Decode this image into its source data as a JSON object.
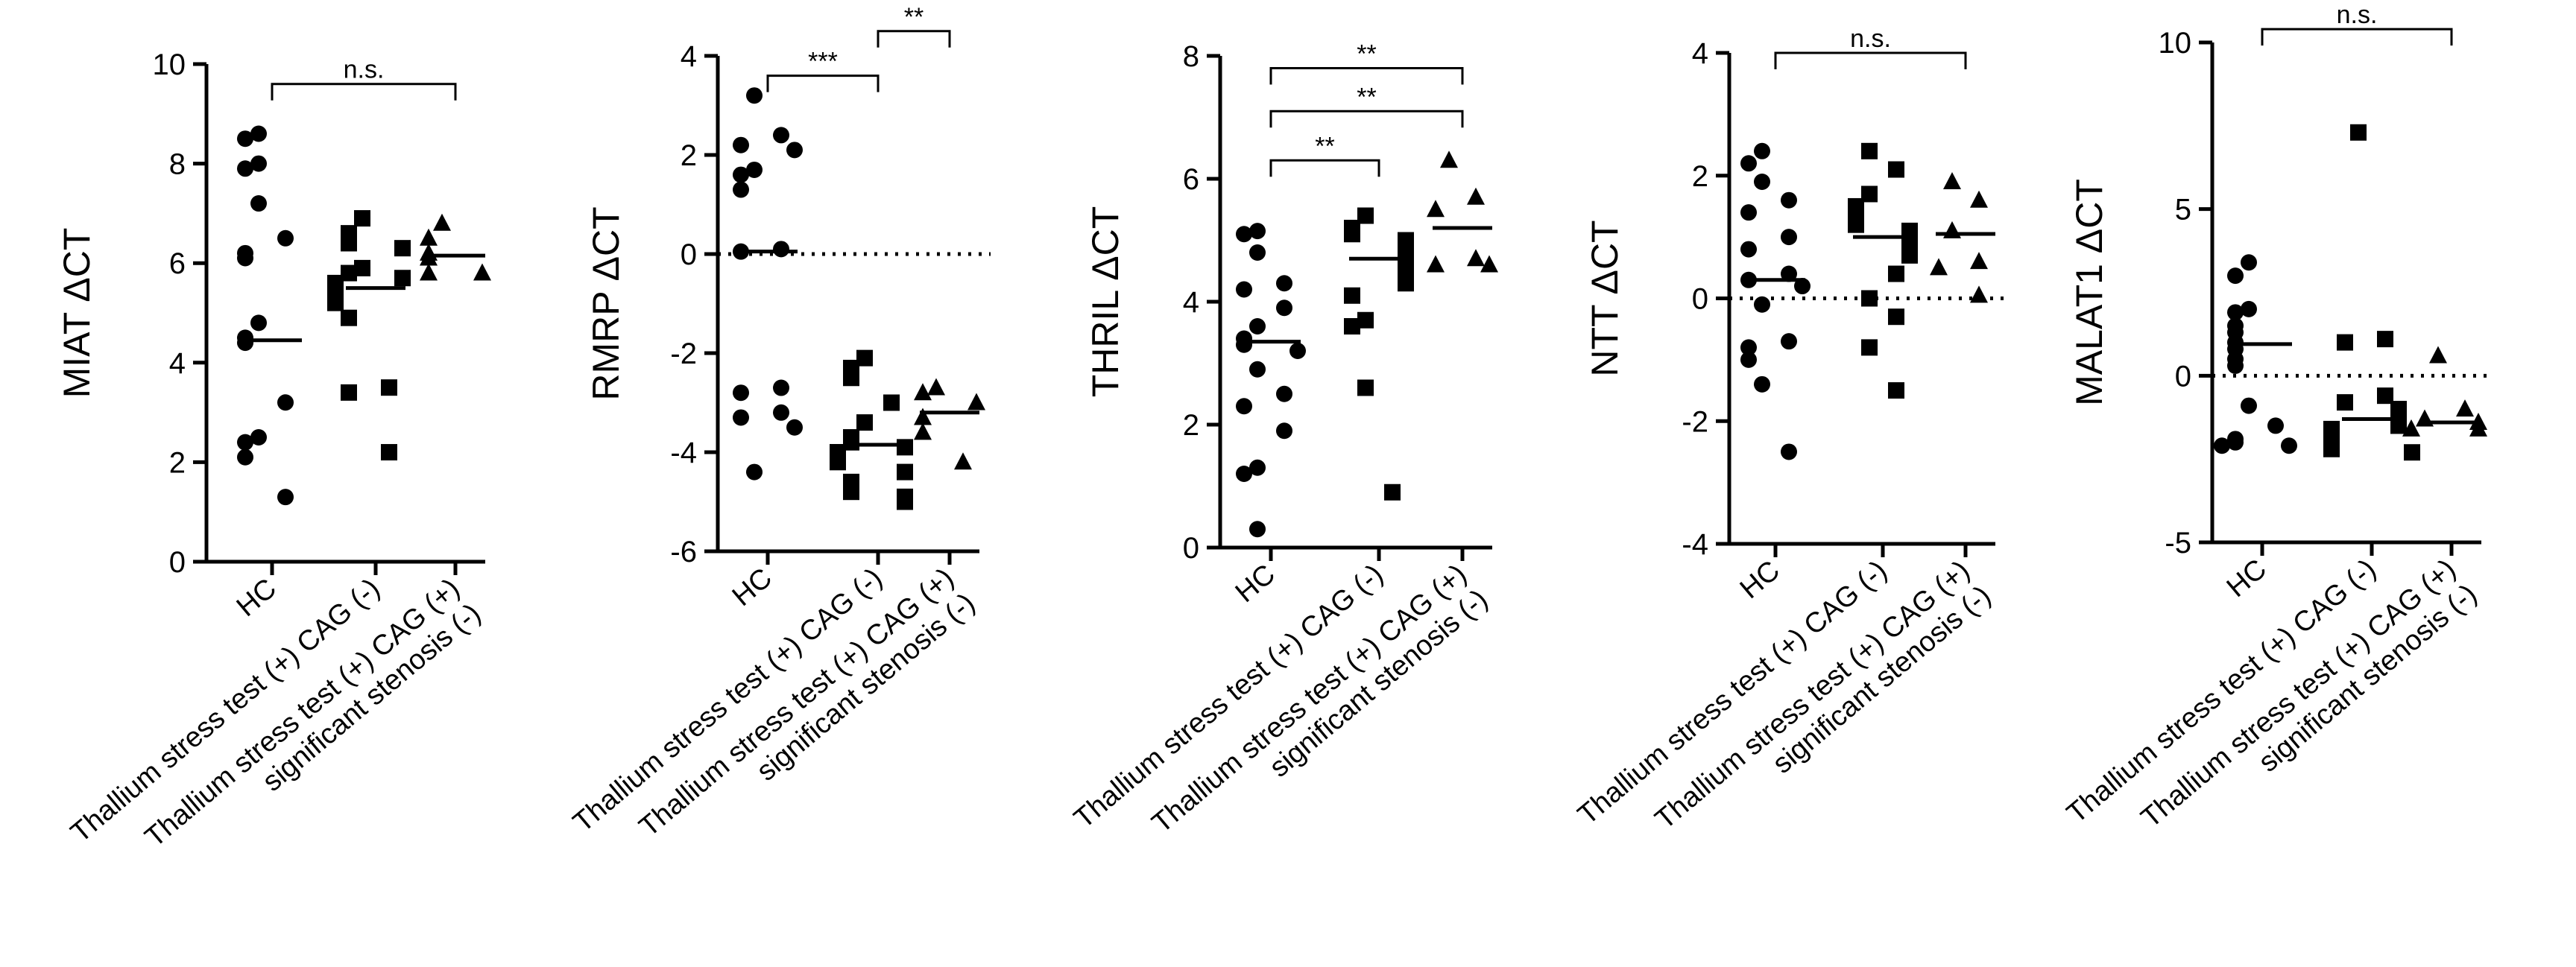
{
  "figure": {
    "description_free": true
  },
  "chart_data": [
    {
      "type": "scatter",
      "ylabel": "MIAT ΔCT",
      "ylim": [
        0,
        10
      ],
      "yticks": [
        0,
        2,
        4,
        6,
        8,
        10
      ],
      "ytick_labels": [
        "0",
        "2",
        "4",
        "6",
        "8",
        "10"
      ],
      "zero_line": false,
      "categories": [
        "HC",
        "Thallium stress test (+) CAG (-)",
        "Thallium stress test (+) CAG (+)\nsignificant stenosis (-)"
      ],
      "series": [
        {
          "name": "HC",
          "marker": "circle",
          "mean": 4.45,
          "values": [
            8.6,
            8.5,
            8.0,
            7.9,
            7.2,
            6.5,
            6.2,
            6.1,
            4.8,
            4.5,
            4.4,
            3.2,
            2.5,
            2.4,
            2.1,
            1.3
          ]
        },
        {
          "name": "Thallium stress test (+) CAG (-)",
          "marker": "square",
          "mean": 5.5,
          "values": [
            6.9,
            6.6,
            6.4,
            6.3,
            5.9,
            5.8,
            5.7,
            5.6,
            5.5,
            5.4,
            5.3,
            5.2,
            4.9,
            3.5,
            3.4,
            2.2
          ]
        },
        {
          "name": "Thallium stress test (+) CAG (+) significant stenosis (-)",
          "marker": "triangle",
          "mean": 6.15,
          "values": [
            6.8,
            6.5,
            6.2,
            6.1,
            5.8,
            5.8
          ]
        }
      ],
      "annotations": [
        {
          "from": 0,
          "to": 2,
          "label": "n.s.",
          "y": 9.6
        }
      ]
    },
    {
      "type": "scatter",
      "ylabel": "RMRP ΔCT",
      "ylim": [
        -6,
        4
      ],
      "yticks": [
        -6,
        -4,
        -2,
        0,
        2,
        4
      ],
      "ytick_labels": [
        "-6",
        "-4",
        "-2",
        "0",
        "2",
        "4"
      ],
      "zero_line": true,
      "categories": [
        "HC",
        "Thallium stress test (+) CAG (-)",
        "Thallium stress test (+) CAG (+)\nsignificant stenosis (-)"
      ],
      "series": [
        {
          "name": "HC",
          "marker": "circle",
          "mean": 0.05,
          "values": [
            3.2,
            2.4,
            2.2,
            2.1,
            1.7,
            1.6,
            1.3,
            0.1,
            0.05,
            -2.7,
            -2.8,
            -3.2,
            -3.3,
            -3.5,
            -4.4
          ]
        },
        {
          "name": "Thallium stress test (+) CAG (-)",
          "marker": "square",
          "mean": -3.85,
          "values": [
            -2.1,
            -2.3,
            -2.5,
            -3.0,
            -3.4,
            -3.7,
            -3.8,
            -3.9,
            -4.0,
            -4.1,
            -4.2,
            -4.4,
            -4.6,
            -4.8,
            -4.9,
            -5.0
          ]
        },
        {
          "name": "Thallium stress test (+) CAG (+) significant stenosis (-)",
          "marker": "triangle",
          "mean": -3.2,
          "values": [
            -2.7,
            -2.8,
            -3.0,
            -3.3,
            -3.6,
            -4.2
          ]
        }
      ],
      "annotations": [
        {
          "from": 1,
          "to": 2,
          "label": "**",
          "y": 4.5
        },
        {
          "from": 0,
          "to": 1,
          "label": "***",
          "y": 3.6
        }
      ]
    },
    {
      "type": "scatter",
      "ylabel": "THRIL ΔCT",
      "ylim": [
        0,
        8
      ],
      "yticks": [
        0,
        2,
        4,
        6,
        8
      ],
      "ytick_labels": [
        "0",
        "2",
        "4",
        "6",
        "8"
      ],
      "zero_line": false,
      "categories": [
        "HC",
        "Thallium stress test (+) CAG (-)",
        "Thallium stress test (+) CAG (+)\nsignificant stenosis (-)"
      ],
      "series": [
        {
          "name": "HC",
          "marker": "circle",
          "mean": 3.35,
          "values": [
            5.15,
            5.1,
            4.8,
            4.3,
            4.2,
            3.9,
            3.6,
            3.4,
            3.3,
            3.2,
            2.9,
            2.5,
            2.3,
            1.9,
            1.3,
            1.2,
            0.3
          ]
        },
        {
          "name": "Thallium stress test (+) CAG (-)",
          "marker": "square",
          "mean": 4.7,
          "values": [
            5.4,
            5.2,
            5.1,
            5.0,
            4.9,
            4.8,
            4.7,
            4.6,
            4.5,
            4.4,
            4.3,
            4.1,
            3.7,
            3.6,
            2.6,
            0.9
          ]
        },
        {
          "name": "Thallium stress test (+) CAG (+) significant stenosis (-)",
          "marker": "triangle",
          "mean": 5.2,
          "values": [
            6.3,
            5.7,
            5.5,
            4.7,
            4.6,
            4.6
          ]
        }
      ],
      "annotations": [
        {
          "from": 0,
          "to": 2,
          "label": "**",
          "y": 7.8
        },
        {
          "from": 0,
          "to": 2,
          "label": "**",
          "y": 7.1
        },
        {
          "from": 0,
          "to": 1,
          "label": "**",
          "y": 6.3
        }
      ]
    },
    {
      "type": "scatter",
      "ylabel": "NTT ΔCT",
      "ylim": [
        -4,
        4
      ],
      "yticks": [
        -4,
        -2,
        0,
        2,
        4
      ],
      "ytick_labels": [
        "-4",
        "-2",
        "0",
        "2",
        "4"
      ],
      "zero_line": true,
      "categories": [
        "HC",
        "Thallium stress test (+) CAG (-)",
        "Thallium stress test (+) CAG (+)\nsignificant stenosis (-)"
      ],
      "series": [
        {
          "name": "HC",
          "marker": "circle",
          "mean": 0.3,
          "values": [
            2.4,
            2.2,
            1.9,
            1.6,
            1.4,
            1.0,
            0.8,
            0.4,
            0.3,
            0.2,
            -0.1,
            -0.7,
            -0.8,
            -1.0,
            -1.4,
            -2.5
          ]
        },
        {
          "name": "Thallium stress test (+) CAG (-)",
          "marker": "square",
          "mean": 1.0,
          "values": [
            2.4,
            2.1,
            1.7,
            1.5,
            1.3,
            1.2,
            1.1,
            1.0,
            0.9,
            0.8,
            0.7,
            0.4,
            0.0,
            -0.3,
            -0.8,
            -1.5
          ]
        },
        {
          "name": "Thallium stress test (+) CAG (+) significant stenosis (-)",
          "marker": "triangle",
          "mean": 1.05,
          "values": [
            1.9,
            1.6,
            1.1,
            0.6,
            0.5,
            0.05
          ]
        }
      ],
      "annotations": [
        {
          "from": 0,
          "to": 2,
          "label": "n.s.",
          "y": 4.0
        }
      ]
    },
    {
      "type": "scatter",
      "ylabel": "MALAT1 ΔCT",
      "ylim": [
        -5,
        10
      ],
      "yticks": [
        -5,
        0,
        5,
        10
      ],
      "ytick_labels": [
        "-5",
        "0",
        "5",
        "10"
      ],
      "zero_line": true,
      "categories": [
        "HC",
        "Thallium stress test (+) CAG (-)",
        "Thallium stress test (+) CAG (+)\nsignificant stenosis (-)"
      ],
      "series": [
        {
          "name": "HC",
          "marker": "circle",
          "mean": 0.95,
          "values": [
            3.4,
            3.0,
            2.0,
            1.9,
            1.5,
            1.3,
            1.0,
            0.8,
            0.5,
            0.3,
            -0.9,
            -1.5,
            -1.9,
            -2.0,
            -2.1,
            -2.1
          ]
        },
        {
          "name": "Thallium stress test (+) CAG (-)",
          "marker": "square",
          "mean": -1.3,
          "values": [
            7.3,
            1.1,
            1.0,
            -0.6,
            -0.8,
            -1.0,
            -1.2,
            -1.4,
            -1.5,
            -1.6,
            -1.7,
            -1.9,
            -2.0,
            -2.1,
            -2.2,
            -2.3
          ]
        },
        {
          "name": "Thallium stress test (+) CAG (+) significant stenosis (-)",
          "marker": "triangle",
          "mean": -1.4,
          "values": [
            0.6,
            -1.0,
            -1.3,
            -1.4,
            -1.6,
            -1.6
          ]
        }
      ],
      "annotations": [
        {
          "from": 0,
          "to": 2,
          "label": "n.s.",
          "y": 10.4
        }
      ]
    }
  ]
}
